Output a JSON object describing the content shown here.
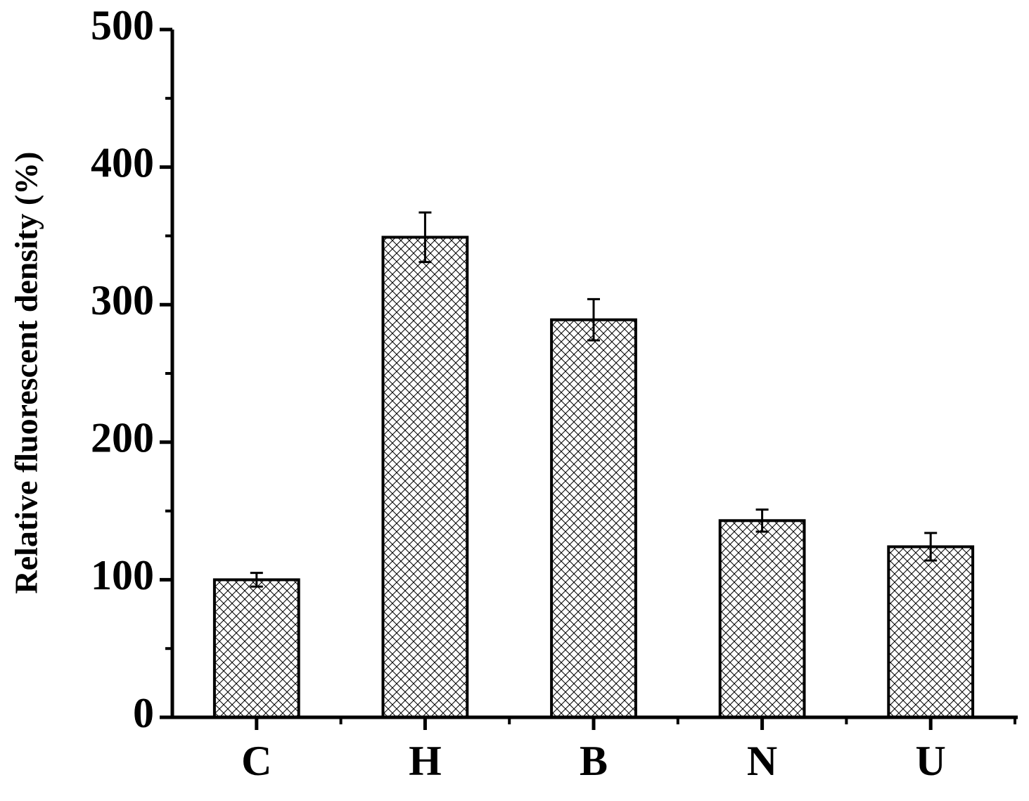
{
  "chart_data": {
    "type": "bar",
    "y_label": "Relative fluorescent density (%)",
    "categories": [
      "C",
      "H",
      "B",
      "N",
      "U"
    ],
    "values": [
      100,
      349,
      289,
      143,
      124
    ],
    "errors": [
      5,
      18,
      15,
      8,
      10
    ],
    "color": "#000000",
    "hatch": "crosshatch",
    "ylim": [
      0,
      500
    ],
    "yticks": [
      0,
      100,
      200,
      300,
      400,
      500
    ],
    "grid": false
  }
}
